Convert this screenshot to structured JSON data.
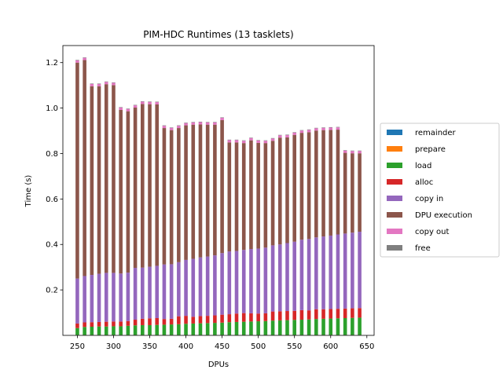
{
  "chart_data": {
    "type": "bar",
    "stacked": true,
    "title": "PIM-HDC Runtimes (13 tasklets)",
    "xlabel": "DPUs",
    "ylabel": "Time (s)",
    "xlim": [
      230,
      660
    ],
    "ylim": [
      0,
      1.275
    ],
    "xticks": [
      250,
      300,
      350,
      400,
      450,
      500,
      550,
      600,
      650
    ],
    "yticks": [
      0.2,
      0.4,
      0.6,
      0.8,
      1.0,
      1.2
    ],
    "xtick_labels": [
      "250",
      "300",
      "350",
      "400",
      "450",
      "500",
      "550",
      "600",
      "650"
    ],
    "ytick_labels": [
      "0.2",
      "0.4",
      "0.6",
      "0.8",
      "1.0",
      "1.2"
    ],
    "bar_width": 5,
    "legend_position": "center-right-outside",
    "x": [
      250,
      260,
      270,
      280,
      290,
      300,
      310,
      320,
      330,
      340,
      350,
      360,
      370,
      380,
      390,
      400,
      410,
      420,
      430,
      440,
      450,
      460,
      470,
      480,
      490,
      500,
      510,
      520,
      530,
      540,
      550,
      560,
      570,
      580,
      590,
      600,
      610,
      620,
      630,
      640
    ],
    "series": [
      {
        "name": "remainder",
        "color": "#1f77b4",
        "values": [
          0.001,
          0.001,
          0.001,
          0.001,
          0.001,
          0.001,
          0.001,
          0.001,
          0.001,
          0.001,
          0.001,
          0.001,
          0.001,
          0.001,
          0.001,
          0.001,
          0.001,
          0.001,
          0.001,
          0.001,
          0.001,
          0.001,
          0.001,
          0.001,
          0.001,
          0.001,
          0.001,
          0.001,
          0.001,
          0.001,
          0.001,
          0.001,
          0.001,
          0.001,
          0.001,
          0.001,
          0.001,
          0.001,
          0.001,
          0.001
        ]
      },
      {
        "name": "prepare",
        "color": "#ff7f0e",
        "values": [
          0.001,
          0.001,
          0.001,
          0.001,
          0.001,
          0.001,
          0.001,
          0.001,
          0.001,
          0.001,
          0.001,
          0.001,
          0.001,
          0.001,
          0.001,
          0.001,
          0.001,
          0.001,
          0.001,
          0.001,
          0.001,
          0.001,
          0.001,
          0.001,
          0.001,
          0.001,
          0.001,
          0.001,
          0.001,
          0.001,
          0.001,
          0.001,
          0.001,
          0.001,
          0.001,
          0.001,
          0.001,
          0.001,
          0.001,
          0.001
        ]
      },
      {
        "name": "load",
        "color": "#2ca02c",
        "values": [
          0.03,
          0.035,
          0.036,
          0.037,
          0.037,
          0.038,
          0.038,
          0.04,
          0.042,
          0.043,
          0.043,
          0.044,
          0.045,
          0.046,
          0.047,
          0.049,
          0.05,
          0.051,
          0.052,
          0.053,
          0.054,
          0.056,
          0.057,
          0.058,
          0.059,
          0.06,
          0.061,
          0.063,
          0.064,
          0.065,
          0.066,
          0.067,
          0.068,
          0.07,
          0.071,
          0.072,
          0.073,
          0.074,
          0.075,
          0.076
        ]
      },
      {
        "name": "alloc",
        "color": "#d62728",
        "values": [
          0.02,
          0.02,
          0.02,
          0.02,
          0.021,
          0.021,
          0.021,
          0.021,
          0.025,
          0.028,
          0.03,
          0.03,
          0.025,
          0.025,
          0.035,
          0.035,
          0.03,
          0.032,
          0.032,
          0.033,
          0.035,
          0.035,
          0.037,
          0.038,
          0.036,
          0.034,
          0.034,
          0.04,
          0.04,
          0.04,
          0.04,
          0.042,
          0.04,
          0.043,
          0.042,
          0.042,
          0.042,
          0.042,
          0.042,
          0.042
        ]
      },
      {
        "name": "copy in",
        "color": "#9467bd",
        "values": [
          0.198,
          0.204,
          0.208,
          0.212,
          0.215,
          0.214,
          0.211,
          0.213,
          0.228,
          0.225,
          0.227,
          0.23,
          0.24,
          0.24,
          0.238,
          0.246,
          0.255,
          0.258,
          0.261,
          0.264,
          0.271,
          0.276,
          0.275,
          0.278,
          0.283,
          0.286,
          0.289,
          0.291,
          0.294,
          0.299,
          0.304,
          0.31,
          0.314,
          0.316,
          0.32,
          0.323,
          0.327,
          0.33,
          0.333,
          0.336
        ]
      },
      {
        "name": "DPU execution",
        "color": "#8c564b",
        "values": [
          0.95,
          0.95,
          0.83,
          0.825,
          0.83,
          0.826,
          0.72,
          0.71,
          0.705,
          0.72,
          0.715,
          0.71,
          0.6,
          0.59,
          0.59,
          0.592,
          0.59,
          0.585,
          0.58,
          0.575,
          0.585,
          0.48,
          0.478,
          0.47,
          0.478,
          0.465,
          0.46,
          0.46,
          0.47,
          0.465,
          0.47,
          0.47,
          0.47,
          0.47,
          0.468,
          0.465,
          0.461,
          0.355,
          0.349,
          0.345
        ]
      },
      {
        "name": "copy out",
        "color": "#e377c2",
        "values": [
          0.01,
          0.01,
          0.01,
          0.01,
          0.01,
          0.01,
          0.01,
          0.01,
          0.01,
          0.01,
          0.01,
          0.01,
          0.01,
          0.01,
          0.01,
          0.01,
          0.01,
          0.01,
          0.01,
          0.01,
          0.01,
          0.01,
          0.01,
          0.01,
          0.01,
          0.01,
          0.01,
          0.01,
          0.01,
          0.01,
          0.01,
          0.01,
          0.01,
          0.01,
          0.01,
          0.01,
          0.01,
          0.01,
          0.01,
          0.01
        ]
      },
      {
        "name": "free",
        "color": "#7f7f7f",
        "values": [
          0.002,
          0.002,
          0.002,
          0.002,
          0.002,
          0.002,
          0.002,
          0.002,
          0.002,
          0.002,
          0.002,
          0.002,
          0.002,
          0.002,
          0.002,
          0.002,
          0.002,
          0.002,
          0.002,
          0.002,
          0.002,
          0.002,
          0.002,
          0.002,
          0.002,
          0.002,
          0.002,
          0.002,
          0.002,
          0.002,
          0.002,
          0.002,
          0.002,
          0.002,
          0.002,
          0.002,
          0.002,
          0.002,
          0.002,
          0.002
        ]
      }
    ]
  }
}
